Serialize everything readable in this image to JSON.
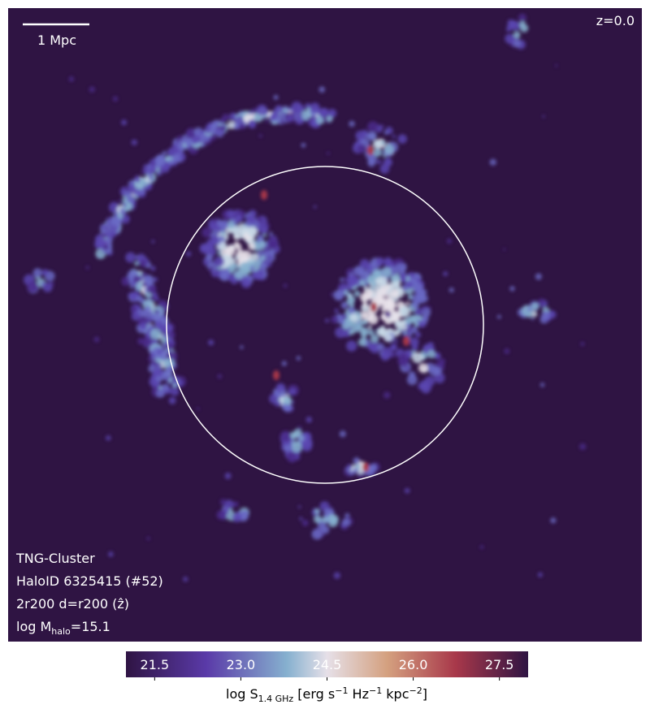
{
  "map": {
    "scale_bar": "1 Mpc",
    "redshift": "z=0.0",
    "info": [
      "TNG-Cluster",
      "HaloID 6325415 (#52)",
      "2r200 d=r200 (ẑ)"
    ],
    "mass_label": [
      "log M",
      "halo",
      "=15.1"
    ]
  },
  "colorbar": {
    "lim": [
      21,
      28
    ],
    "ticks": [
      21.5,
      {
        "value": 23,
        "label": "23.0"
      },
      24.5,
      {
        "value": 26,
        "label": "26.0"
      },
      27.5
    ],
    "label": [
      "log S",
      "1.4 GHz",
      " [erg s",
      "−1",
      " Hz",
      "−1",
      " kpc",
      "−2",
      "]"
    ]
  }
}
